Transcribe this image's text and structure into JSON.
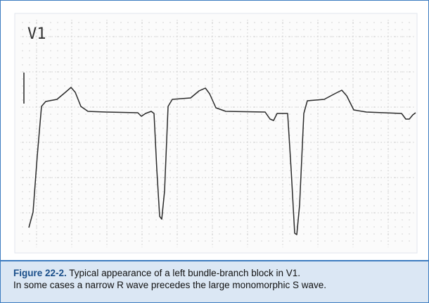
{
  "figure": {
    "lead_label": "V1",
    "caption_label": "Figure 22-2.",
    "caption_lines": [
      "Typical appearance of a left bundle-branch block in V1.",
      "In some cases a narrow R wave precedes the large monomorphic S wave."
    ]
  }
}
